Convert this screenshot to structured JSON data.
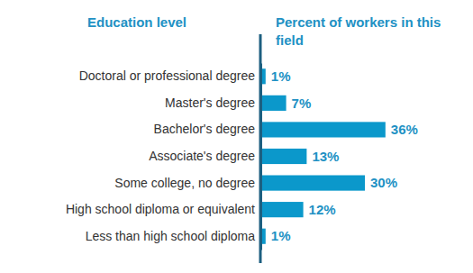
{
  "chart_data": {
    "type": "bar",
    "orientation": "horizontal",
    "y_label": "Education level",
    "x_label": "Percent of workers in this field",
    "categories": [
      "Doctoral or professional degree",
      "Master's degree",
      "Bachelor's degree",
      "Associate's degree",
      "Some college, no degree",
      "High school diploma or equivalent",
      "Less than high school diploma"
    ],
    "values": [
      1,
      7,
      36,
      13,
      30,
      12,
      1
    ],
    "value_labels": [
      "1%",
      "7%",
      "36%",
      "13%",
      "30%",
      "12%",
      "1%"
    ],
    "color": "#0b98cb",
    "xlim": [
      0,
      60
    ],
    "data_labels": true,
    "tick_labels": "y",
    "grid": false
  }
}
